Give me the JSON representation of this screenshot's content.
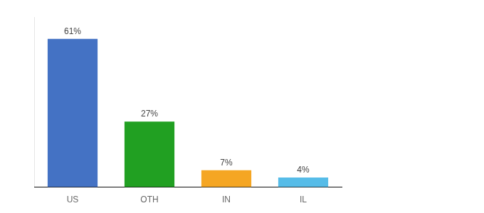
{
  "chart_data": {
    "type": "bar",
    "categories": [
      "US",
      "OTH",
      "IN",
      "IL"
    ],
    "values": [
      61,
      27,
      7,
      4
    ],
    "value_labels": [
      "61%",
      "27%",
      "7%",
      "4%"
    ],
    "data_labels": true,
    "colors": [
      "#4472c4",
      "#21a022",
      "#f5a623",
      "#56bce8"
    ],
    "ylim": [
      0,
      70
    ],
    "grid": false,
    "legend": false,
    "tick_labels": "x"
  }
}
